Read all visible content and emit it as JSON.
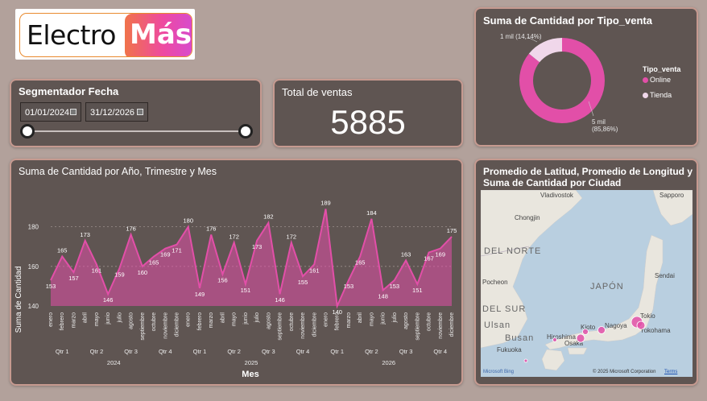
{
  "logo": {
    "part1": "Electro",
    "part2": "Más"
  },
  "slicer": {
    "title": "Segmentador Fecha",
    "start_date": "01/01/2024",
    "end_date": "31/12/2026"
  },
  "kpi": {
    "title": "Total de ventas",
    "value": "5885"
  },
  "donut": {
    "title": "Suma de Cantidad por Tipo_venta",
    "legend_title": "Tipo_venta",
    "label_tienda": "1 mil (14,14%)",
    "label_online_1": "5 mil",
    "label_online_2": "(85,86%)",
    "colors": {
      "Online": "#e24fa8",
      "Tienda": "#f0d7ea"
    }
  },
  "line_chart": {
    "title": "Suma de Cantidad por Año, Trimestre y Mes",
    "ylabel": "Suma de Cantidad",
    "xlabel": "Mes",
    "accent": "#e24fa8"
  },
  "map": {
    "title_line1": "Promedio de Latitud, Promedio de Longitud y",
    "title_line2": "Suma de Cantidad por Ciudad",
    "copyright": "© 2025 Microsoft Corporation",
    "terms": "Terms",
    "brand": "Microsoft Bing",
    "labels": {
      "vladivostok": "Vladivostok",
      "chongjin": "Chongjin",
      "sapporo": "Sapporo",
      "del_norte": "DEL NORTE",
      "japon": "JAPÓN",
      "pocheon": "Pocheon",
      "sendai": "Sendai",
      "del_sur": "DEL SUR",
      "ulsan": "Ulsan",
      "busan": "Busan",
      "hiroshima": "Hiroshima",
      "kioto": "Kioto",
      "nagoya": "Nagoya",
      "tokio": "Tokio",
      "yokohama": "Yokohama",
      "osaka": "Osaka",
      "fukuoka": "Fukuoka"
    }
  },
  "chart_data": [
    {
      "type": "area",
      "title": "Suma de Cantidad por Año, Trimestre y Mes",
      "xlabel": "Mes",
      "ylabel": "Suma de Cantidad",
      "ylim": [
        140,
        190
      ],
      "y_ticks": [
        140,
        160,
        180
      ],
      "grid": true,
      "categories": [
        "enero",
        "febrero",
        "marzo",
        "abril",
        "mayo",
        "junio",
        "julio",
        "agosto",
        "septiembre",
        "octubre",
        "noviembre",
        "diciembre",
        "enero",
        "febrero",
        "marzo",
        "abril",
        "mayo",
        "junio",
        "julio",
        "agosto",
        "septiembre",
        "octubre",
        "noviembre",
        "diciembre",
        "enero",
        "febrero",
        "marzo",
        "abril",
        "mayo",
        "junio",
        "julio",
        "agosto",
        "septiembre",
        "octubre",
        "noviembre",
        "diciembre"
      ],
      "quarters": [
        "Qtr 1",
        "Qtr 2",
        "Qtr 3",
        "Qtr 4",
        "Qtr 1",
        "Qtr 2",
        "Qtr 3",
        "Qtr 4",
        "Qtr 1",
        "Qtr 2",
        "Qtr 3",
        "Qtr 4"
      ],
      "years": [
        "2024",
        "2025",
        "2026"
      ],
      "series": [
        {
          "values": [
            153,
            165,
            157,
            173,
            161,
            146,
            159,
            176,
            160,
            165,
            169,
            171,
            180,
            149,
            176,
            156,
            172,
            151,
            173,
            182,
            146,
            172,
            155,
            161,
            189,
            140,
            153,
            165,
            184,
            148,
            153,
            163,
            151,
            167,
            169,
            175
          ]
        }
      ]
    },
    {
      "type": "pie",
      "title": "Suma de Cantidad por Tipo_venta",
      "categories": [
        "Online",
        "Tienda"
      ],
      "values": [
        85.86,
        14.14
      ],
      "legend": "right"
    }
  ]
}
